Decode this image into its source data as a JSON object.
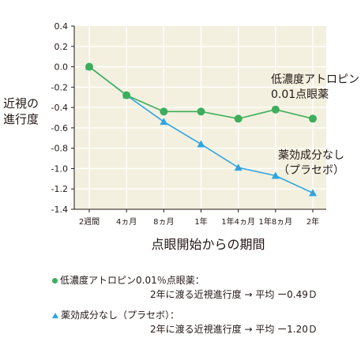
{
  "chart_data": {
    "type": "line",
    "categories": [
      "2週間",
      "4ヵ月",
      "8ヵ月",
      "1年",
      "1年4ヵ月",
      "1年8ヵ月",
      "2年"
    ],
    "ylabel": "近視の\n進行度",
    "xlabel": "点眼開始からの期間",
    "ylim": [
      -1.4,
      0.4
    ],
    "yticks": [
      "0.4",
      "0.2",
      "0.0",
      "-0.2",
      "-0.4",
      "-0.6",
      "-0.8",
      "-1.0",
      "-1.2",
      "-1.4"
    ],
    "series": [
      {
        "name": "低濃度アトロピン0.01点眼薬",
        "marker": "circle",
        "color": "#3dae5b",
        "values": [
          0.0,
          -0.28,
          -0.44,
          -0.44,
          -0.51,
          -0.42,
          -0.51
        ]
      },
      {
        "name": "薬効成分なし（プラセボ）",
        "marker": "triangle",
        "color": "#2fa5e0",
        "values": [
          0.0,
          -0.28,
          -0.54,
          -0.76,
          -0.99,
          -1.07,
          -1.24
        ]
      }
    ],
    "annotations": {
      "atropine": [
        "低濃度アトロピン",
        "0.01点眼薬"
      ],
      "placebo": [
        "薬効成分なし",
        "（プラセボ）"
      ]
    },
    "legend": [
      {
        "label": "低濃度アトロピン0.01％点眼薬：",
        "detail": "2年に渡る近視進行度 → 平均 ー0.49Ｄ"
      },
      {
        "label": "薬効成分なし（プラセボ）：",
        "detail": "2年に渡る近視進行度 → 平均 ー1.20Ｄ"
      }
    ],
    "colors": {
      "plot_bg": "#f3f0df",
      "grid": "#ffffff",
      "axis": "#231815"
    }
  }
}
